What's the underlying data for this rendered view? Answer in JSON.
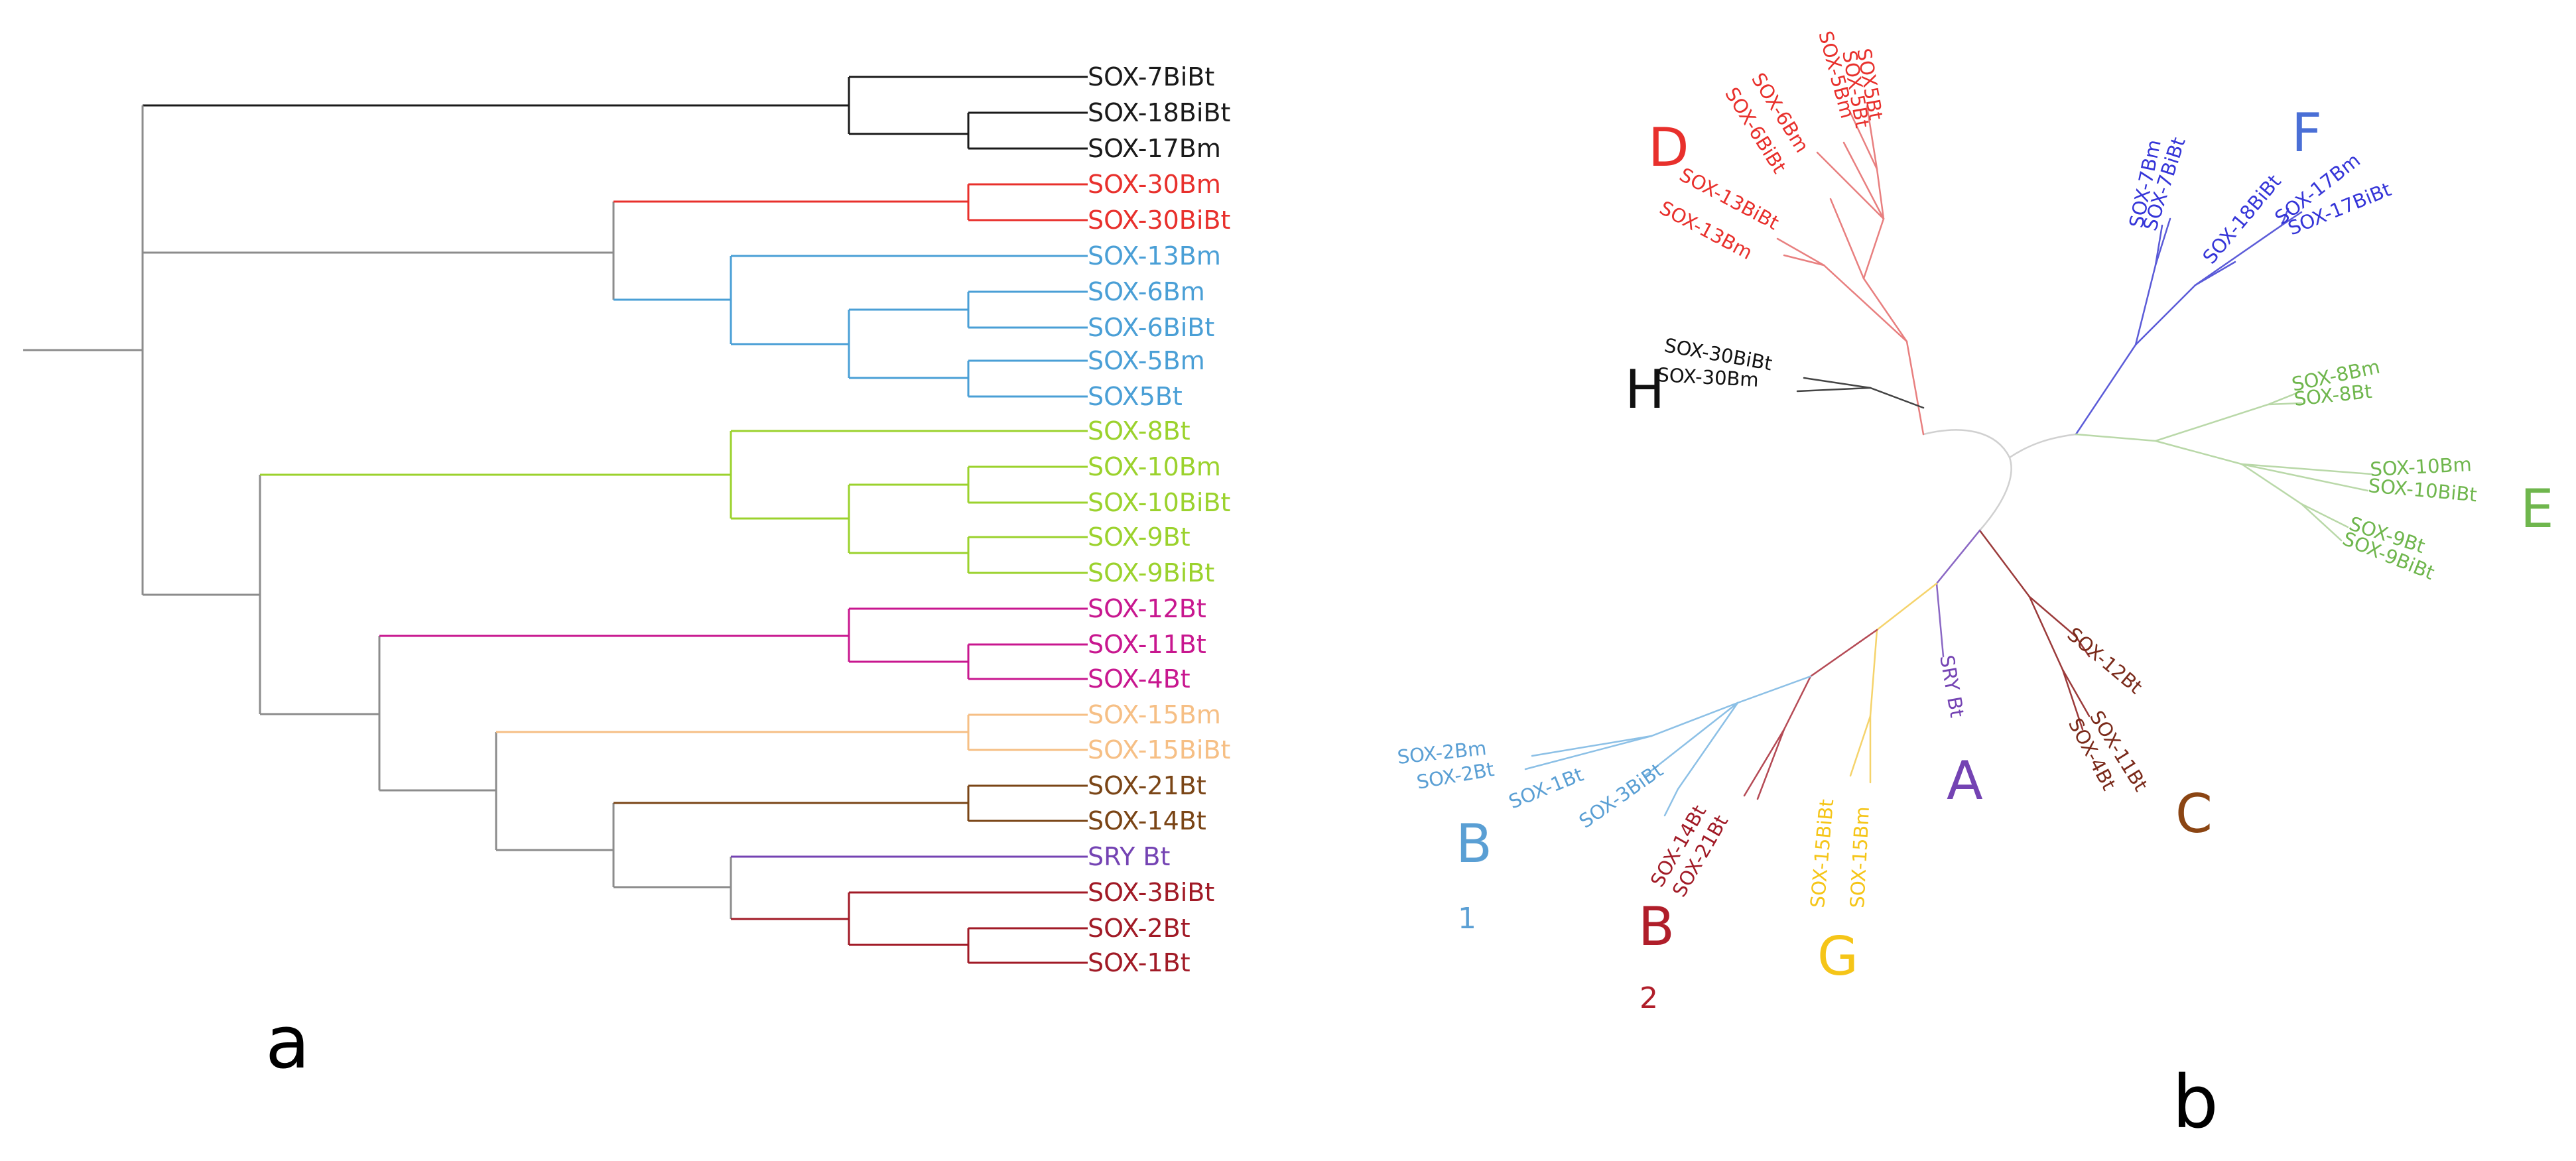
{
  "panels": {
    "left": "a",
    "right": "b"
  },
  "colors": {
    "black": "#1a1a1a",
    "grey": "#8c8c8c",
    "red": "#e8302c",
    "blue": "#4a9fd6",
    "green": "#9bd22d",
    "magenta": "#c8178f",
    "peach": "#f6bf85",
    "brown": "#7a4516",
    "purple": "#7443b3",
    "darkred": "#a11a26",
    "radblue": "#2d1fd8",
    "radgreen": "#6fb64d",
    "radlightblue": "#5a9fd4",
    "yellow": "#f5c518",
    "radbrown": "#7a2a1a",
    "radC": "#8b4513",
    "radgrey": "#bdbdbd"
  },
  "tree_a": {
    "leaves": [
      "SOX-7BiBt",
      "SOX-18BiBt",
      "SOX-17Bm",
      "SOX-30Bm",
      "SOX-30BiBt",
      "SOX-13Bm",
      "SOX-6Bm",
      "SOX-6BiBt",
      "SOX-5Bm",
      "SOX5Bt",
      "SOX-8Bt",
      "SOX-10Bm",
      "SOX-10BiBt",
      "SOX-9Bt",
      "SOX-9BiBt",
      "SOX-12Bt",
      "SOX-11Bt",
      "SOX-4Bt",
      "SOX-15Bm",
      "SOX-15BiBt",
      "SOX-21Bt",
      "SOX-14Bt",
      "SRY Bt",
      "SOX-3BiBt",
      "SOX-2Bt",
      "SOX-1Bt"
    ],
    "leaf_colors": [
      "black",
      "black",
      "black",
      "red",
      "red",
      "blue",
      "blue",
      "blue",
      "blue",
      "blue",
      "green",
      "green",
      "green",
      "green",
      "green",
      "magenta",
      "magenta",
      "magenta",
      "peach",
      "peach",
      "brown",
      "brown",
      "purple",
      "darkred",
      "darkred",
      "darkred"
    ]
  },
  "tree_b": {
    "groups": {
      "A": {
        "label": "A",
        "color": "#7443b3"
      },
      "B1": {
        "label": "B",
        "sub": "1",
        "color": "#5a9fd4"
      },
      "B2": {
        "label": "B",
        "sub": "2",
        "color": "#b01e2a"
      },
      "C": {
        "label": "C",
        "color": "#8b4513"
      },
      "D": {
        "label": "D",
        "color": "#e8302c"
      },
      "E": {
        "label": "E",
        "color": "#6fb64d"
      },
      "F": {
        "label": "F",
        "color": "#4a6fd6"
      },
      "G": {
        "label": "G",
        "color": "#f5c518"
      },
      "H": {
        "label": "H",
        "color": "#111111"
      }
    },
    "leaves": {
      "d1": "SOX-6Bm",
      "d2": "SOX-6BiBt",
      "d3": "SOX-5Bm",
      "d4": "SOX-5Bt",
      "d5": "SOX5Bt",
      "d6": "SOX-13BiBt",
      "d7": "SOX-13Bm",
      "f1": "SOX-7Bm",
      "f2": "SOX-7BiBt",
      "f3": "SOX-18BiBt",
      "f4": "SOX-17Bm",
      "f5": "SOX-17BiBt",
      "h1": "SOX-30BiBt",
      "h2": "SOX-30Bm",
      "e1": "SOX-8Bm",
      "e2": "SOX-8Bt",
      "e3": "SOX-10Bm",
      "e4": "SOX-10BiBt",
      "e5": "SOX-9Bt",
      "e6": "SOX-9BiBt",
      "c1": "SOX-12Bt",
      "c2": "SOX-11Bt",
      "c3": "SOX-4Bt",
      "a1": "SRY Bt",
      "g1": "SOX-15BiBt",
      "g2": "SOX-15Bm",
      "b21": "SOX-14Bt",
      "b22": "SOX-21Bt",
      "b11": "SOX-2Bm",
      "b12": "SOX-2Bt",
      "b13": "SOX-1Bt",
      "b14": "SOX-3BiBt"
    }
  }
}
